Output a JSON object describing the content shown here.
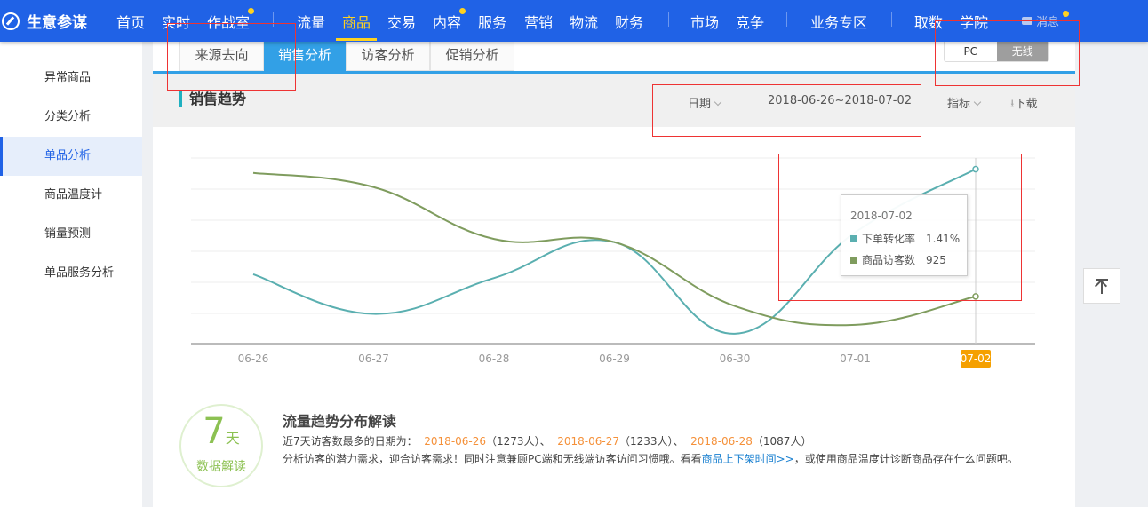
{
  "app": {
    "title": "生意参谋"
  },
  "nav": {
    "items": [
      "首页",
      "实时",
      "作战室",
      "流量",
      "商品",
      "交易",
      "内容",
      "服务",
      "营销",
      "物流",
      "财务",
      "市场",
      "竞争",
      "业务专区",
      "取数",
      "学院"
    ],
    "active": "商品",
    "message": "消息"
  },
  "sidebar": {
    "items": [
      "异常商品",
      "分类分析",
      "单品分析",
      "商品温度计",
      "销量预测",
      "单品服务分析"
    ],
    "active": "单品分析"
  },
  "tabs": {
    "items": [
      "来源去向",
      "销售分析",
      "访客分析",
      "促销分析"
    ],
    "active": "销售分析"
  },
  "device_toggle": {
    "options": [
      "PC",
      "无线"
    ],
    "selected": "无线"
  },
  "section": {
    "title": "销售趋势",
    "date_label": "日期",
    "date_range": "2018-06-26~2018-07-02",
    "metrics_label": "指标",
    "download_label": "下载"
  },
  "chart_data": {
    "type": "line",
    "categories": [
      "06-26",
      "06-27",
      "06-28",
      "06-29",
      "06-30",
      "07-01",
      "07-02"
    ],
    "highlighted_category": "07-02",
    "series": [
      {
        "name": "下单转化率",
        "color": "#5aafb0",
        "unit": "%",
        "values": [
          0.56,
          0.24,
          0.53,
          0.82,
          0.08,
          0.9,
          1.41
        ]
      },
      {
        "name": "商品访客数",
        "color": "#7f9c5e",
        "values": [
          1273,
          1233,
          1087,
          1078,
          898,
          845,
          925
        ]
      }
    ],
    "grid": true,
    "tooltip": {
      "date": "2018-07-02",
      "rows": [
        {
          "label": "下单转化率",
          "value": "1.41%"
        },
        {
          "label": "商品访客数",
          "value": "925"
        }
      ]
    }
  },
  "insight": {
    "days": "7",
    "days_unit": "天",
    "badge_label": "数据解读",
    "title": "流量趋势分布解读",
    "line1_prefix": "近7天访客数最多的日期为：",
    "top_dates": [
      {
        "date": "2018-06-26",
        "count": "（1273人）、"
      },
      {
        "date": "2018-06-27",
        "count": "（1233人）、"
      },
      {
        "date": "2018-06-28",
        "count": "（1087人）"
      }
    ],
    "line2_prefix": "分析访客的潜力需求，迎合访客需求！同时注意兼顾PC端和无线端访客访问习惯哦。看看",
    "line2_link": "商品上下架时间>>",
    "line2_suffix": "，或使用商品温度计诊断商品存在什么问题吧。"
  },
  "colors": {
    "nav_bg": "#2062e6",
    "accent": "#ffd21f",
    "tab_active": "#32a0e6",
    "highlight": "#f5a000"
  }
}
